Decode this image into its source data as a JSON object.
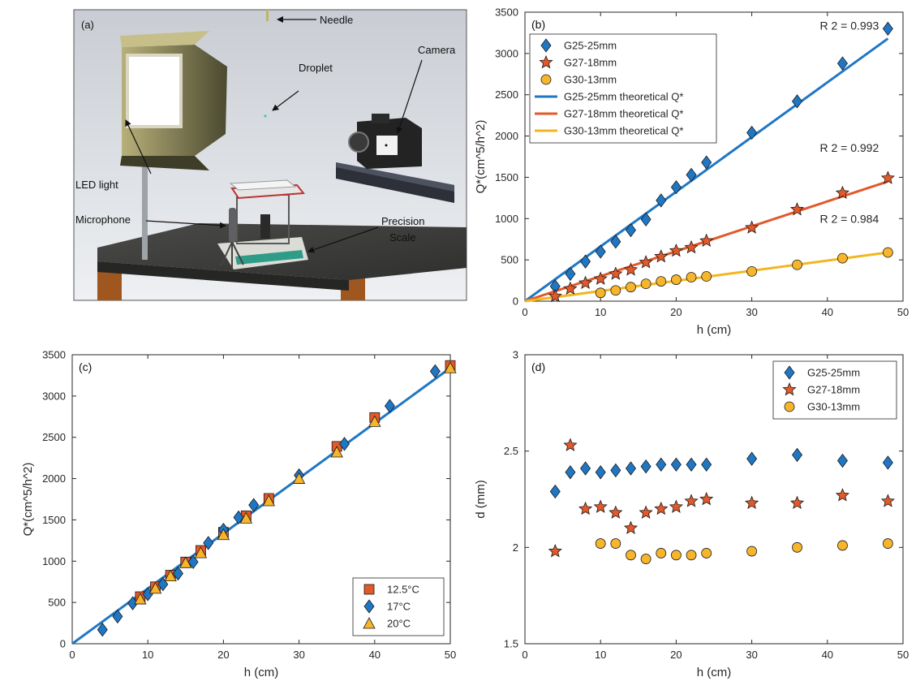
{
  "panel_a": {
    "tag": "(a)",
    "labels": {
      "needle": "Needle",
      "droplet": "Droplet",
      "camera": "Camera",
      "led": "LED light",
      "microphone": "Microphone",
      "scale_line1": "Precision",
      "scale_line2": "Scale"
    }
  },
  "chart_data": [
    {
      "panel": "(b)",
      "type": "scatter",
      "xlabel": "h (cm)",
      "ylabel": "Q*(cm^5/h^2)",
      "xlim": [
        0,
        50
      ],
      "ylim": [
        0,
        3500
      ],
      "xticks": [
        0,
        10,
        20,
        30,
        40,
        50
      ],
      "yticks": [
        0,
        500,
        1000,
        1500,
        2000,
        2500,
        3000,
        3500
      ],
      "legend_position": "top-left",
      "grid": false,
      "series": [
        {
          "name": "G25-25mm",
          "marker": "diamond",
          "color": "#1f77c4",
          "x": [
            4,
            6,
            8,
            10,
            12,
            14,
            16,
            18,
            20,
            22,
            24,
            30,
            36,
            42,
            48
          ],
          "y": [
            180,
            330,
            480,
            600,
            720,
            860,
            990,
            1220,
            1380,
            1530,
            1680,
            2040,
            2420,
            2880,
            3300
          ]
        },
        {
          "name": "G27-18mm",
          "marker": "star",
          "color": "#e2592a",
          "x": [
            4,
            6,
            8,
            10,
            12,
            14,
            16,
            18,
            20,
            22,
            24,
            30,
            36,
            42,
            48
          ],
          "y": [
            60,
            150,
            220,
            270,
            330,
            380,
            470,
            540,
            610,
            650,
            730,
            890,
            1110,
            1310,
            1490
          ]
        },
        {
          "name": "G30-13mm",
          "marker": "circle",
          "color": "#f7b52b",
          "x": [
            10,
            12,
            14,
            16,
            18,
            20,
            22,
            24,
            30,
            36,
            42,
            48
          ],
          "y": [
            100,
            130,
            170,
            210,
            240,
            260,
            290,
            300,
            360,
            440,
            520,
            590
          ]
        }
      ],
      "fits": [
        {
          "name": "G25-25mm theoretical Q*",
          "color": "#1f77c4",
          "x": [
            0,
            48
          ],
          "y": [
            0,
            3180
          ]
        },
        {
          "name": "G27-18mm theoretical Q*",
          "color": "#e2592a",
          "x": [
            0,
            48
          ],
          "y": [
            0,
            1450
          ]
        },
        {
          "name": "G30-13mm theoretical Q*",
          "color": "#f3b61f",
          "x": [
            0,
            48
          ],
          "y": [
            0,
            590
          ]
        }
      ],
      "annotations": [
        {
          "text": "R 2 = 0.993",
          "x": 39,
          "y": 3290
        },
        {
          "text": "R 2 = 0.992",
          "x": 39,
          "y": 1810
        },
        {
          "text": "R 2 = 0.984",
          "x": 39,
          "y": 950
        }
      ]
    },
    {
      "panel": "(c)",
      "type": "scatter",
      "xlabel": "h (cm)",
      "ylabel": "Q*(cm^5/h^2)",
      "xlim": [
        0,
        50
      ],
      "ylim": [
        0,
        3500
      ],
      "xticks": [
        0,
        10,
        20,
        30,
        40,
        50
      ],
      "yticks": [
        0,
        500,
        1000,
        1500,
        2000,
        2500,
        3000,
        3500
      ],
      "legend_position": "bottom-right",
      "grid": false,
      "series": [
        {
          "name": "12.5°C",
          "marker": "square",
          "color": "#e2592a",
          "x": [
            9,
            11,
            13,
            15,
            17,
            20,
            23,
            26,
            35,
            40,
            50
          ],
          "y": [
            570,
            690,
            830,
            990,
            1130,
            1350,
            1550,
            1760,
            2390,
            2740,
            3370
          ]
        },
        {
          "name": "17°C",
          "marker": "diamond",
          "color": "#1f77c4",
          "x": [
            4,
            6,
            8,
            10,
            12,
            14,
            16,
            18,
            20,
            22,
            24,
            30,
            36,
            42,
            48
          ],
          "y": [
            170,
            330,
            490,
            600,
            720,
            850,
            990,
            1220,
            1380,
            1530,
            1680,
            2040,
            2420,
            2880,
            3300
          ]
        },
        {
          "name": "20°C",
          "marker": "triangle",
          "color": "#f7b52b",
          "x": [
            9,
            11,
            13,
            15,
            17,
            20,
            23,
            26,
            30,
            35,
            40,
            50
          ],
          "y": [
            540,
            670,
            820,
            980,
            1100,
            1320,
            1520,
            1730,
            2000,
            2320,
            2690,
            3340
          ]
        }
      ],
      "fits": [
        {
          "name": "fit",
          "color": "#1f77c4",
          "x": [
            0,
            50
          ],
          "y": [
            0,
            3340
          ]
        }
      ]
    },
    {
      "panel": "(d)",
      "type": "scatter",
      "xlabel": "h (cm)",
      "ylabel": "d (mm)",
      "xlim": [
        0,
        50
      ],
      "ylim": [
        1.5,
        3
      ],
      "xticks": [
        0,
        10,
        20,
        30,
        40,
        50
      ],
      "yticks": [
        1.5,
        2,
        2.5,
        3
      ],
      "legend_position": "top-right",
      "grid": false,
      "series": [
        {
          "name": "G25-25mm",
          "marker": "diamond",
          "color": "#1f77c4",
          "x": [
            4,
            6,
            8,
            10,
            12,
            14,
            16,
            18,
            20,
            22,
            24,
            30,
            36,
            42,
            48
          ],
          "y": [
            2.29,
            2.39,
            2.41,
            2.39,
            2.4,
            2.41,
            2.42,
            2.43,
            2.43,
            2.43,
            2.43,
            2.46,
            2.48,
            2.45,
            2.44
          ]
        },
        {
          "name": "G27-18mm",
          "marker": "star",
          "color": "#e2592a",
          "x": [
            4,
            6,
            8,
            10,
            12,
            14,
            16,
            18,
            20,
            22,
            24,
            30,
            36,
            42,
            48
          ],
          "y": [
            1.98,
            2.53,
            2.2,
            2.21,
            2.18,
            2.1,
            2.18,
            2.2,
            2.21,
            2.24,
            2.25,
            2.23,
            2.23,
            2.27,
            2.24
          ]
        },
        {
          "name": "G30-13mm",
          "marker": "circle",
          "color": "#f7b52b",
          "x": [
            10,
            12,
            14,
            16,
            18,
            20,
            22,
            24,
            30,
            36,
            42,
            48
          ],
          "y": [
            2.02,
            2.02,
            1.96,
            1.94,
            1.97,
            1.96,
            1.96,
            1.97,
            1.98,
            2.0,
            2.01,
            2.02
          ]
        }
      ]
    }
  ]
}
